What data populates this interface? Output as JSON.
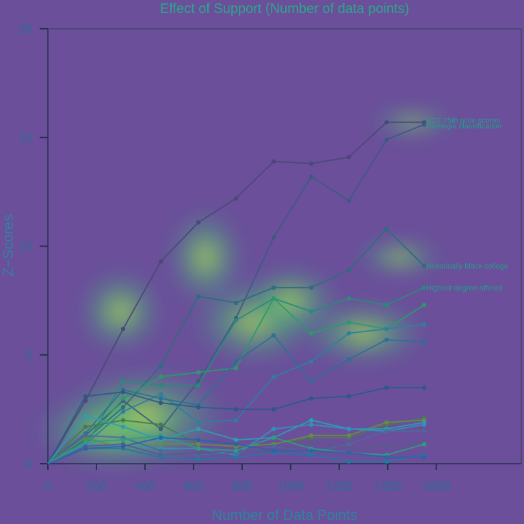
{
  "chart_data": {
    "type": "line",
    "title": "Effect of Support (Number of data points)",
    "xlabel": "Number of Data Points",
    "ylabel": "Z−Scores",
    "xlim": [
      0,
      1950
    ],
    "ylim": [
      0,
      20
    ],
    "x_ticks": [
      0,
      200,
      400,
      600,
      800,
      1000,
      1200,
      1400,
      1600
    ],
    "y_ticks": [
      0,
      5,
      10,
      15,
      20
    ],
    "x": [
      0,
      155,
      310,
      465,
      620,
      775,
      930,
      1085,
      1240,
      1395,
      1550
    ],
    "series": [
      {
        "name": "ACT 75th pctle scores",
        "color": "#4a4878",
        "values": [
          0,
          2.9,
          6.2,
          9.3,
          11.1,
          12.2,
          13.9,
          13.8,
          14.1,
          15.7,
          15.7
        ]
      },
      {
        "name": "Carnegie classification",
        "color": "#3d5a82",
        "values": [
          0,
          1.3,
          2.9,
          1.6,
          3.8,
          6.7,
          10.4,
          13.2,
          12.1,
          14.9,
          15.6
        ]
      },
      {
        "name": "Historically black college",
        "color": "#2f6c7e",
        "values": [
          0,
          1.1,
          2.6,
          4.5,
          7.7,
          7.4,
          8.1,
          8.1,
          8.9,
          10.8,
          9.1
        ]
      },
      {
        "name": "Highest degree offered",
        "color": "#2a8a7a",
        "values": [
          0,
          0.8,
          3.8,
          3.6,
          3.6,
          6.6,
          7.6,
          7.0,
          7.6,
          7.3,
          8.1
        ]
      },
      {
        "color": "#2a9a6a",
        "values": [
          0,
          1.0,
          3.0,
          4.0,
          4.2,
          4.4,
          7.6,
          6.0,
          6.5,
          6.2,
          7.3
        ]
      },
      {
        "color": "#2c7fa0",
        "values": [
          0,
          0.9,
          2.4,
          3.2,
          1.9,
          2.0,
          4.0,
          4.7,
          6.0,
          6.2,
          6.4
        ]
      },
      {
        "color": "#2d6f96",
        "values": [
          0,
          1.4,
          3.4,
          3.0,
          2.7,
          4.7,
          5.9,
          3.8,
          4.8,
          5.7,
          5.6
        ]
      },
      {
        "color": "#2c5a86",
        "values": [
          0,
          3.1,
          3.3,
          2.8,
          2.6,
          2.5,
          2.5,
          3.0,
          3.1,
          3.5,
          3.5
        ]
      },
      {
        "color": "#4b7a4a",
        "values": [
          0,
          1.7,
          2.0,
          1.8,
          0.9,
          0.8,
          0.9,
          1.2,
          1.2,
          1.8,
          2.1
        ]
      },
      {
        "color": "#6a8a4a",
        "values": [
          0,
          1.2,
          0.7,
          0.9,
          0.9,
          0.8,
          0.9,
          1.3,
          1.3,
          1.9,
          2.0
        ]
      },
      {
        "color": "#2a9fb0",
        "values": [
          0,
          2.2,
          1.7,
          1.1,
          1.6,
          1.1,
          1.2,
          2.0,
          1.6,
          1.6,
          1.9
        ]
      },
      {
        "color": "#3390c0",
        "values": [
          0,
          0.9,
          0.8,
          0.7,
          0.7,
          0.4,
          1.6,
          1.8,
          1.6,
          1.5,
          1.8
        ]
      },
      {
        "color": "#4a6a9a",
        "values": [
          0,
          1.3,
          1.2,
          0.6,
          0.4,
          0.5,
          0.8,
          0.5,
          0.9,
          1.5,
          1.5
        ]
      },
      {
        "color": "#5a5a8a",
        "values": [
          0,
          0.8,
          0.9,
          0.4,
          0.5,
          0.6,
          0.6,
          1.0,
          0.7,
          0.8,
          1.0
        ]
      },
      {
        "color": "#1f7aa0",
        "values": [
          0,
          0.7,
          0.7,
          0.3,
          0.2,
          0.3,
          0.5,
          0.4,
          0.1,
          0.1,
          0.4
        ]
      },
      {
        "color": "#2aa080",
        "values": [
          0,
          1.0,
          1.1,
          1.3,
          0.7,
          0.6,
          1.2,
          0.7,
          0.5,
          0.4,
          0.9
        ]
      },
      {
        "color": "#3060a8",
        "values": [
          0,
          0.7,
          0.8,
          1.2,
          1.1,
          0.9,
          0.6,
          0.6,
          0.5,
          0.3,
          0.3
        ]
      }
    ]
  }
}
